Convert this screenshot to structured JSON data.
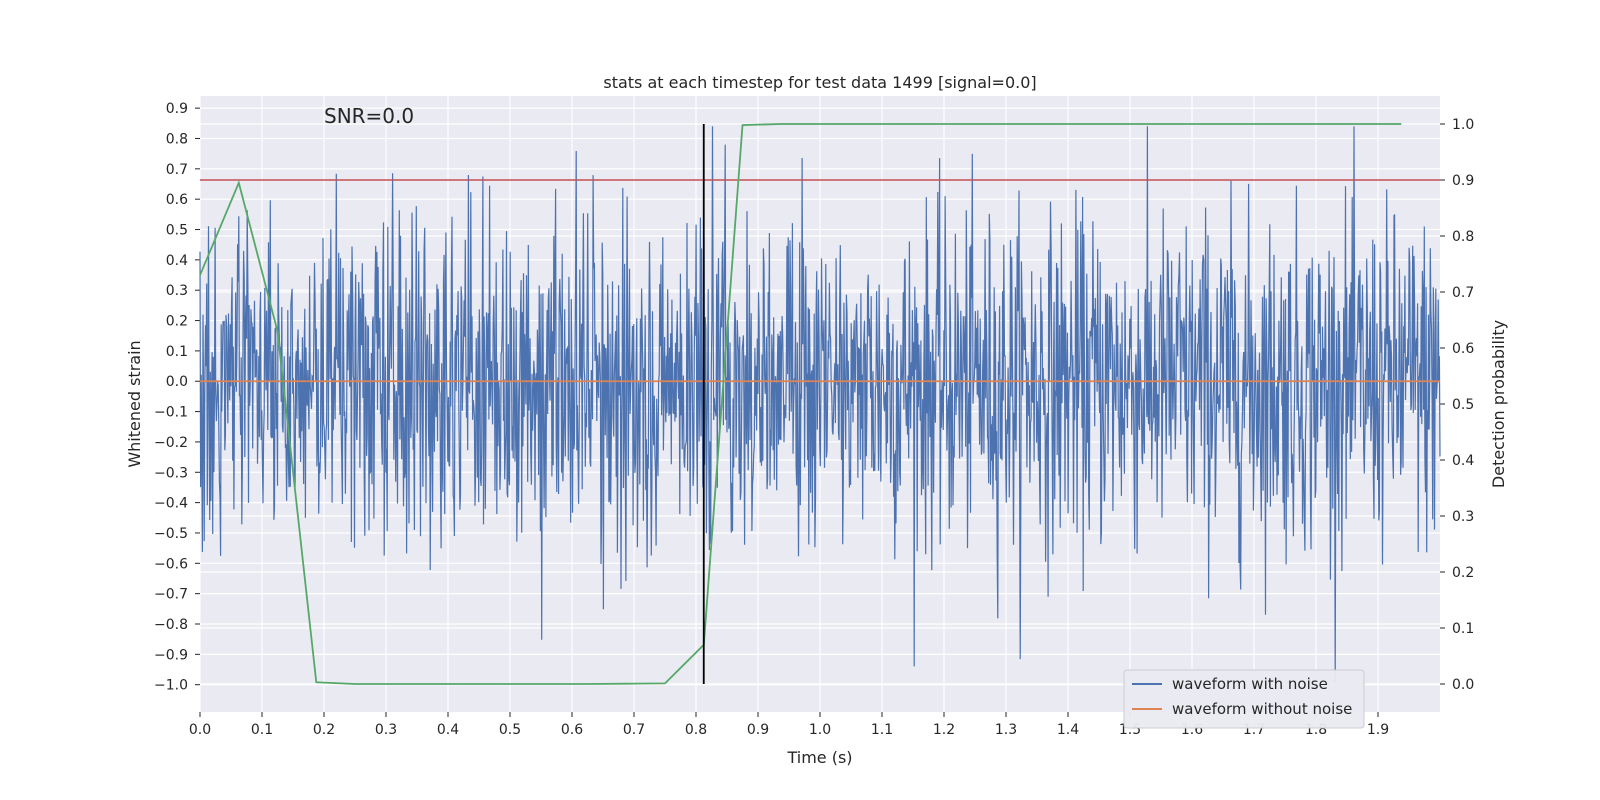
{
  "chart_data": {
    "type": "line",
    "title": "stats at each timestep for test data 1499 [signal=0.0]",
    "xlabel": "Time (s)",
    "ylabel": "Whitened strain",
    "y2label": "Detection probability",
    "annotation": "SNR=0.0",
    "xlim": [
      0.0,
      2.0
    ],
    "ylim": [
      -1.09,
      0.94
    ],
    "y2lim": [
      -0.05,
      1.05
    ],
    "x_ticks": [
      "0.0",
      "0.1",
      "0.2",
      "0.3",
      "0.4",
      "0.5",
      "0.6",
      "0.7",
      "0.8",
      "0.9",
      "1.0",
      "1.1",
      "1.2",
      "1.3",
      "1.4",
      "1.5",
      "1.6",
      "1.7",
      "1.8",
      "1.9"
    ],
    "y_ticks": [
      "0.9",
      "0.8",
      "0.7",
      "0.6",
      "0.5",
      "0.4",
      "0.3",
      "0.2",
      "0.1",
      "0.0",
      "−0.1",
      "−0.2",
      "−0.3",
      "−0.4",
      "−0.5",
      "−0.6",
      "−0.7",
      "−0.8",
      "−0.9",
      "−1.0"
    ],
    "y2_ticks": [
      "1.0",
      "0.9",
      "0.8",
      "0.7",
      "0.6",
      "0.5",
      "0.4",
      "0.3",
      "0.2",
      "0.1",
      "0.0"
    ],
    "grid": true,
    "legend_position": "bottom-right",
    "series": [
      {
        "name": "waveform with noise",
        "axis": "left",
        "color": "#4c72b0",
        "pattern": "dense noise sampled at 2048 Hz, approximately ±0.3 standard deviation, peaks up to about ±0.85",
        "x_range": [
          0.0,
          2.0
        ]
      },
      {
        "name": "waveform without noise",
        "axis": "left",
        "color": "#dd8452",
        "x": [
          0.0,
          2.0
        ],
        "y": [
          0.0,
          0.0
        ]
      }
    ],
    "detection_probability": {
      "axis": "right",
      "color": "#55a868",
      "x": [
        0.0,
        0.0625,
        0.125,
        0.1875,
        0.25,
        0.3125,
        0.375,
        0.4375,
        0.5,
        0.5625,
        0.625,
        0.6875,
        0.75,
        0.8125,
        0.875,
        0.9375,
        1.0,
        1.0625,
        1.125,
        1.1875,
        1.25,
        1.3125,
        1.375,
        1.4375,
        1.5,
        1.5625,
        1.625,
        1.6875,
        1.75,
        1.8125,
        1.875,
        1.9375
      ],
      "y": [
        0.73,
        0.895,
        0.63,
        0.003,
        0.0,
        0.0,
        0.0,
        0.0,
        0.0,
        0.0,
        0.0,
        0.0005,
        0.001,
        0.07,
        0.998,
        1.0,
        1.0,
        1.0,
        1.0,
        1.0,
        1.0,
        1.0,
        1.0,
        1.0,
        1.0,
        1.0,
        1.0,
        1.0,
        1.0,
        1.0,
        1.0,
        1.0
      ]
    },
    "threshold_line": {
      "axis": "right",
      "color": "#c44e52",
      "y": 0.9
    },
    "vertical_marker": {
      "color": "#000000",
      "x": 0.8125,
      "y2_range": [
        0.0,
        1.0
      ]
    }
  }
}
